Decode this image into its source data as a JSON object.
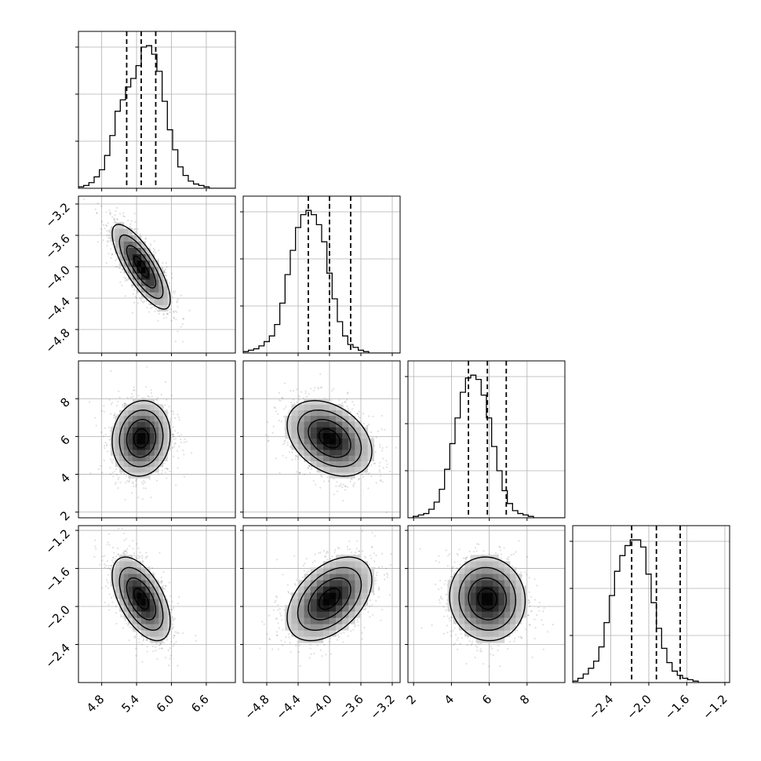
{
  "chart_data": {
    "type": "corner",
    "title": "",
    "parameters": [
      {
        "index": 0,
        "range": [
          4.4,
          7.1
        ],
        "ticks": [
          4.8,
          5.4,
          6.0,
          6.6
        ],
        "tick_labels": [
          "4.8",
          "5.4",
          "6.0",
          "6.6"
        ],
        "mean": 5.48,
        "std": 0.25,
        "quantiles": [
          5.23,
          5.48,
          5.73
        ]
      },
      {
        "index": 1,
        "range": [
          -5.1,
          -3.1
        ],
        "ticks": [
          -4.8,
          -4.4,
          -4.0,
          -3.6,
          -3.2
        ],
        "tick_labels": [
          "−4.8",
          "−4.4",
          "−4.0",
          "−3.6",
          "−3.2"
        ],
        "mean": -4.0,
        "std": 0.27,
        "quantiles": [
          -4.27,
          -4.0,
          -3.73
        ]
      },
      {
        "index": 2,
        "range": [
          1.7,
          10.0
        ],
        "ticks": [
          2,
          4,
          6,
          8
        ],
        "tick_labels": [
          "2",
          "4",
          "6",
          "8"
        ],
        "mean": 5.9,
        "std": 1.0,
        "quantiles": [
          4.9,
          5.9,
          6.9
        ]
      },
      {
        "index": 3,
        "range": [
          -2.8,
          -1.15
        ],
        "ticks": [
          -2.4,
          -2.0,
          -1.6,
          -1.2
        ],
        "tick_labels": [
          "−2.4",
          "−2.0",
          "−1.6",
          "−1.2"
        ],
        "mean": -1.92,
        "std": 0.22,
        "quantiles": [
          -2.18,
          -1.92,
          -1.67
        ]
      }
    ],
    "correlations": [
      {
        "pair": [
          0,
          1
        ],
        "rho": -0.78
      },
      {
        "pair": [
          0,
          2
        ],
        "rho": 0.08
      },
      {
        "pair": [
          1,
          2
        ],
        "rho": -0.35
      },
      {
        "pair": [
          0,
          3
        ],
        "rho": -0.55
      },
      {
        "pair": [
          1,
          3
        ],
        "rho": 0.45
      },
      {
        "pair": [
          2,
          3
        ],
        "rho": -0.05
      }
    ],
    "truth_values": [
      5.45,
      -4.0,
      5.9,
      -1.9
    ],
    "histograms": {
      "0": [
        1,
        2,
        4,
        8,
        13,
        23,
        37,
        54,
        62,
        71,
        77,
        86,
        99,
        100,
        94,
        82,
        61,
        41,
        27,
        15,
        9,
        5,
        3,
        2,
        1,
        0,
        0,
        0,
        0,
        0
      ],
      "1": [
        1,
        2,
        3,
        5,
        8,
        12,
        20,
        35,
        55,
        72,
        88,
        97,
        100,
        97,
        90,
        78,
        56,
        38,
        22,
        12,
        6,
        4,
        2,
        1,
        0,
        0,
        0,
        0,
        0,
        0
      ],
      "2": [
        0,
        1,
        2,
        3,
        6,
        11,
        20,
        34,
        52,
        70,
        88,
        98,
        100,
        97,
        86,
        70,
        50,
        33,
        19,
        10,
        5,
        3,
        2,
        1,
        0,
        0,
        0,
        0,
        0,
        0
      ],
      "3": [
        1,
        3,
        6,
        10,
        15,
        25,
        42,
        61,
        78,
        89,
        96,
        100,
        100,
        95,
        76,
        56,
        38,
        24,
        14,
        8,
        5,
        3,
        2,
        1,
        0,
        0,
        0,
        0,
        0,
        0
      ]
    },
    "grid": true
  },
  "colors": {
    "background": "#ffffff",
    "ink": "#000000",
    "grid": "#b0b0b0"
  }
}
